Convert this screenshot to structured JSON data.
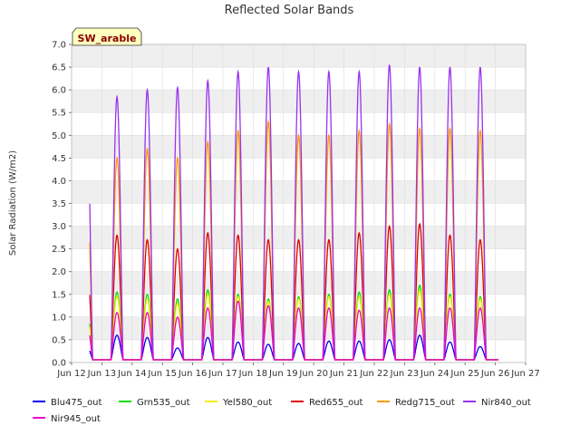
{
  "chart_data": {
    "type": "line",
    "title": "Reflected Solar Bands",
    "badge": "SW_arable",
    "ylabel": "Solar Radiation (W/m2)",
    "xlabel": "",
    "xlim": [
      12,
      27
    ],
    "ylim": [
      0,
      7
    ],
    "xticks": [
      {
        "v": 12,
        "label": "Jun 12"
      },
      {
        "v": 13,
        "label": "Jun 13"
      },
      {
        "v": 14,
        "label": "Jun 14"
      },
      {
        "v": 15,
        "label": "Jun 15"
      },
      {
        "v": 16,
        "label": "Jun 16"
      },
      {
        "v": 17,
        "label": "Jun 17"
      },
      {
        "v": 18,
        "label": "Jun 18"
      },
      {
        "v": 19,
        "label": "Jun 19"
      },
      {
        "v": 20,
        "label": "Jun 20"
      },
      {
        "v": 21,
        "label": "Jun 21"
      },
      {
        "v": 22,
        "label": "Jun 22"
      },
      {
        "v": 23,
        "label": "Jun 23"
      },
      {
        "v": 24,
        "label": "Jun 24"
      },
      {
        "v": 25,
        "label": "Jun 25"
      },
      {
        "v": 26,
        "label": "Jun 26"
      },
      {
        "v": 27,
        "label": "Jun 27"
      }
    ],
    "yticks": [
      "0.0",
      "0.5",
      "1.0",
      "1.5",
      "2.0",
      "2.5",
      "3.0",
      "3.5",
      "4.0",
      "4.5",
      "5.0",
      "5.5",
      "6.0",
      "6.5",
      "7.0"
    ],
    "data_start": 12.6,
    "data_end": 26.1,
    "day_peak_time": 0.5,
    "day_width": 0.4,
    "night_level": 0.06,
    "grid": true,
    "series": [
      {
        "name": "Blu475_out",
        "color": "#0000ee",
        "peaks": [
          0.37,
          0.6,
          0.55,
          0.32,
          0.55,
          0.45,
          0.4,
          0.42,
          0.47,
          0.47,
          0.5,
          0.6,
          0.45,
          0.35
        ]
      },
      {
        "name": "Grn535_out",
        "color": "#00dd00",
        "peaks": [
          1.3,
          1.55,
          1.5,
          1.4,
          1.6,
          1.5,
          1.4,
          1.45,
          1.5,
          1.55,
          1.6,
          1.7,
          1.5,
          1.45
        ]
      },
      {
        "name": "Yel580_out",
        "color": "#eeee00",
        "peaks": [
          1.2,
          1.45,
          1.4,
          1.3,
          1.5,
          1.45,
          1.35,
          1.4,
          1.45,
          1.45,
          1.5,
          1.6,
          1.45,
          1.4
        ]
      },
      {
        "name": "Red655_out",
        "color": "#dd0000",
        "peaks": [
          2.3,
          2.8,
          2.7,
          2.5,
          2.85,
          2.8,
          2.7,
          2.7,
          2.7,
          2.85,
          3.0,
          3.05,
          2.8,
          2.7
        ]
      },
      {
        "name": "Redg715_out",
        "color": "#ff9900",
        "peaks": [
          4.1,
          4.5,
          4.7,
          4.5,
          4.85,
          5.1,
          5.3,
          5.0,
          5.0,
          5.1,
          5.25,
          5.15,
          5.15,
          5.1
        ]
      },
      {
        "name": "Nir840_out",
        "color": "#9933ee",
        "peaks": [
          5.45,
          5.85,
          6.0,
          6.05,
          6.2,
          6.4,
          6.5,
          6.4,
          6.4,
          6.4,
          6.55,
          6.5,
          6.5,
          6.5
        ]
      },
      {
        "name": "Nir945_out",
        "color": "#ee00cc",
        "peaks": [
          0.9,
          1.1,
          1.1,
          1.0,
          1.2,
          1.35,
          1.25,
          1.2,
          1.2,
          1.15,
          1.2,
          1.2,
          1.2,
          1.2
        ]
      }
    ],
    "legend_position": "bottom"
  }
}
